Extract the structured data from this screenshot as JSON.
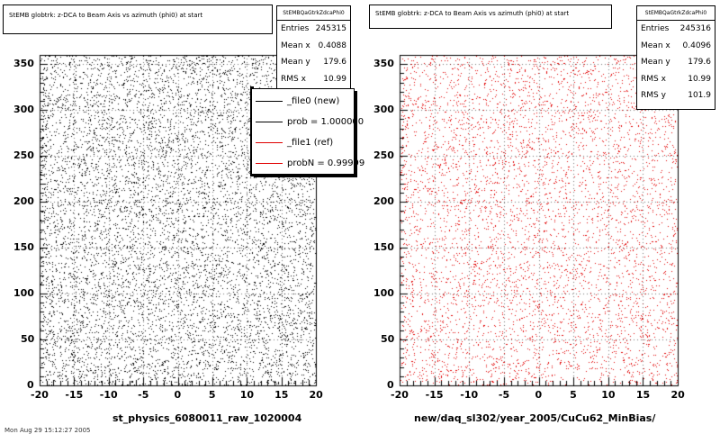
{
  "chart_data": [
    {
      "type": "scatter",
      "title": "StEMB globtrk: z-DCA to Beam Axis vs azimuth (phi0) at start",
      "stats": {
        "name": "StEMBQaGtrkZdcaPhi0",
        "rows": [
          {
            "label": "Entries",
            "value": "245315"
          },
          {
            "label": "Mean x",
            "value": "0.4088"
          },
          {
            "label": "Mean y",
            "value": "179.6"
          },
          {
            "label": "RMS x",
            "value": "10.99"
          }
        ]
      },
      "xlim": [
        -20,
        20
      ],
      "ylim": [
        0,
        360
      ],
      "x_ticks": [
        -20,
        -15,
        -10,
        -5,
        0,
        5,
        10,
        15,
        20
      ],
      "y_ticks": [
        0,
        50,
        100,
        150,
        200,
        250,
        300,
        350
      ],
      "marker_color": "#000000",
      "grid": true,
      "xlabel": "st_physics_6080011_raw_1020004",
      "legend_position": "top-right",
      "legend": [
        {
          "label": "_file0 (new)",
          "color": "#000000"
        },
        {
          "label": "prob = 1.000000",
          "color": "#000000"
        },
        {
          "label": "_file1 (ref)",
          "color": "#e00000"
        },
        {
          "label": "probN = 0.99999",
          "color": "#e00000"
        }
      ],
      "distribution": "uniform x in [-20,20], uniform y in [0,360]"
    },
    {
      "type": "scatter",
      "title": "StEMB globtrk: z-DCA to Beam Axis vs azimuth (phi0) at start",
      "stats": {
        "name": "StEMBQaGtrkZdcaPhi0",
        "rows": [
          {
            "label": "Entries",
            "value": "245316"
          },
          {
            "label": "Mean x",
            "value": "0.4096"
          },
          {
            "label": "Mean y",
            "value": "179.6"
          },
          {
            "label": "RMS x",
            "value": "10.99"
          },
          {
            "label": "RMS y",
            "value": "101.9"
          }
        ]
      },
      "xlim": [
        -20,
        20
      ],
      "ylim": [
        0,
        360
      ],
      "x_ticks": [
        -20,
        -15,
        -10,
        -5,
        0,
        5,
        10,
        15,
        20
      ],
      "y_ticks": [
        0,
        50,
        100,
        150,
        200,
        250,
        300,
        350
      ],
      "marker_color": "#e00000",
      "grid": true,
      "xlabel": "new/daq_sl302/year_2005/CuCu62_MinBias/",
      "distribution": "uniform x in [-20,20], uniform y in [0,360]"
    }
  ],
  "footer_cut_text": "Mon Aug 29 15:12:27 2005"
}
